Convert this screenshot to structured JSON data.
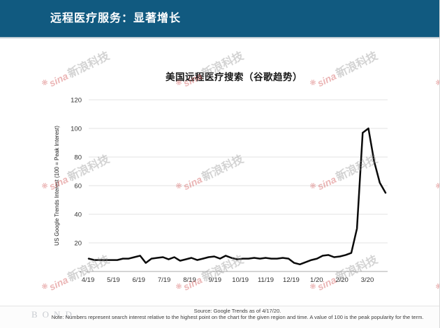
{
  "header": {
    "title": "远程医疗服务：显著增长",
    "bg_color": "#115a80",
    "text_color": "#ffffff"
  },
  "watermark": {
    "brand": "sina",
    "label": "新浪科技"
  },
  "chart_data": {
    "type": "line",
    "title": "美国远程医疗搜索（谷歌趋势）",
    "ylabel": "US Google Trends Interest (100 = Peak Interest)",
    "xlabel": "",
    "ylim": [
      0,
      120
    ],
    "grid": "horizontal",
    "legend": "none",
    "line_color": "#0a0a0a",
    "y_ticks": [
      {
        "label": "120",
        "value": 120
      },
      {
        "label": "100",
        "value": 100
      },
      {
        "label": "80",
        "value": 80
      },
      {
        "label": "60",
        "value": 60
      },
      {
        "label": "40",
        "value": 40
      },
      {
        "label": "20",
        "value": 20
      },
      {
        "label": "-",
        "value": 0
      }
    ],
    "x_tick_labels": [
      "4/19",
      "5/19",
      "6/19",
      "7/19",
      "8/19",
      "9/19",
      "10/19",
      "11/19",
      "12/19",
      "1/20",
      "2/20",
      "3/20"
    ],
    "series": [
      {
        "name": "US Google Trends Interest",
        "interval": "weekly",
        "values": [
          9,
          8,
          8,
          8,
          8,
          8,
          9,
          9,
          10,
          11,
          6,
          9,
          9.5,
          10,
          8.5,
          10,
          7.5,
          8.5,
          9.5,
          8,
          9,
          10,
          10.5,
          9,
          11,
          9.5,
          8.5,
          9,
          9,
          9.5,
          9,
          9.5,
          9,
          9,
          9.5,
          9,
          6,
          5,
          6.5,
          8,
          9,
          11,
          11.5,
          10,
          10.5,
          11.5,
          13,
          30,
          97,
          100,
          77,
          62,
          55
        ]
      }
    ]
  },
  "footer": {
    "logo": "BOND",
    "source_line": "Source: Google Trends as of 4/17/20.",
    "note_line": "Note: Numbers represent search interest relative to the highest point on the chart for the given region and time. A value of 100 is the peak popularity for the term."
  }
}
